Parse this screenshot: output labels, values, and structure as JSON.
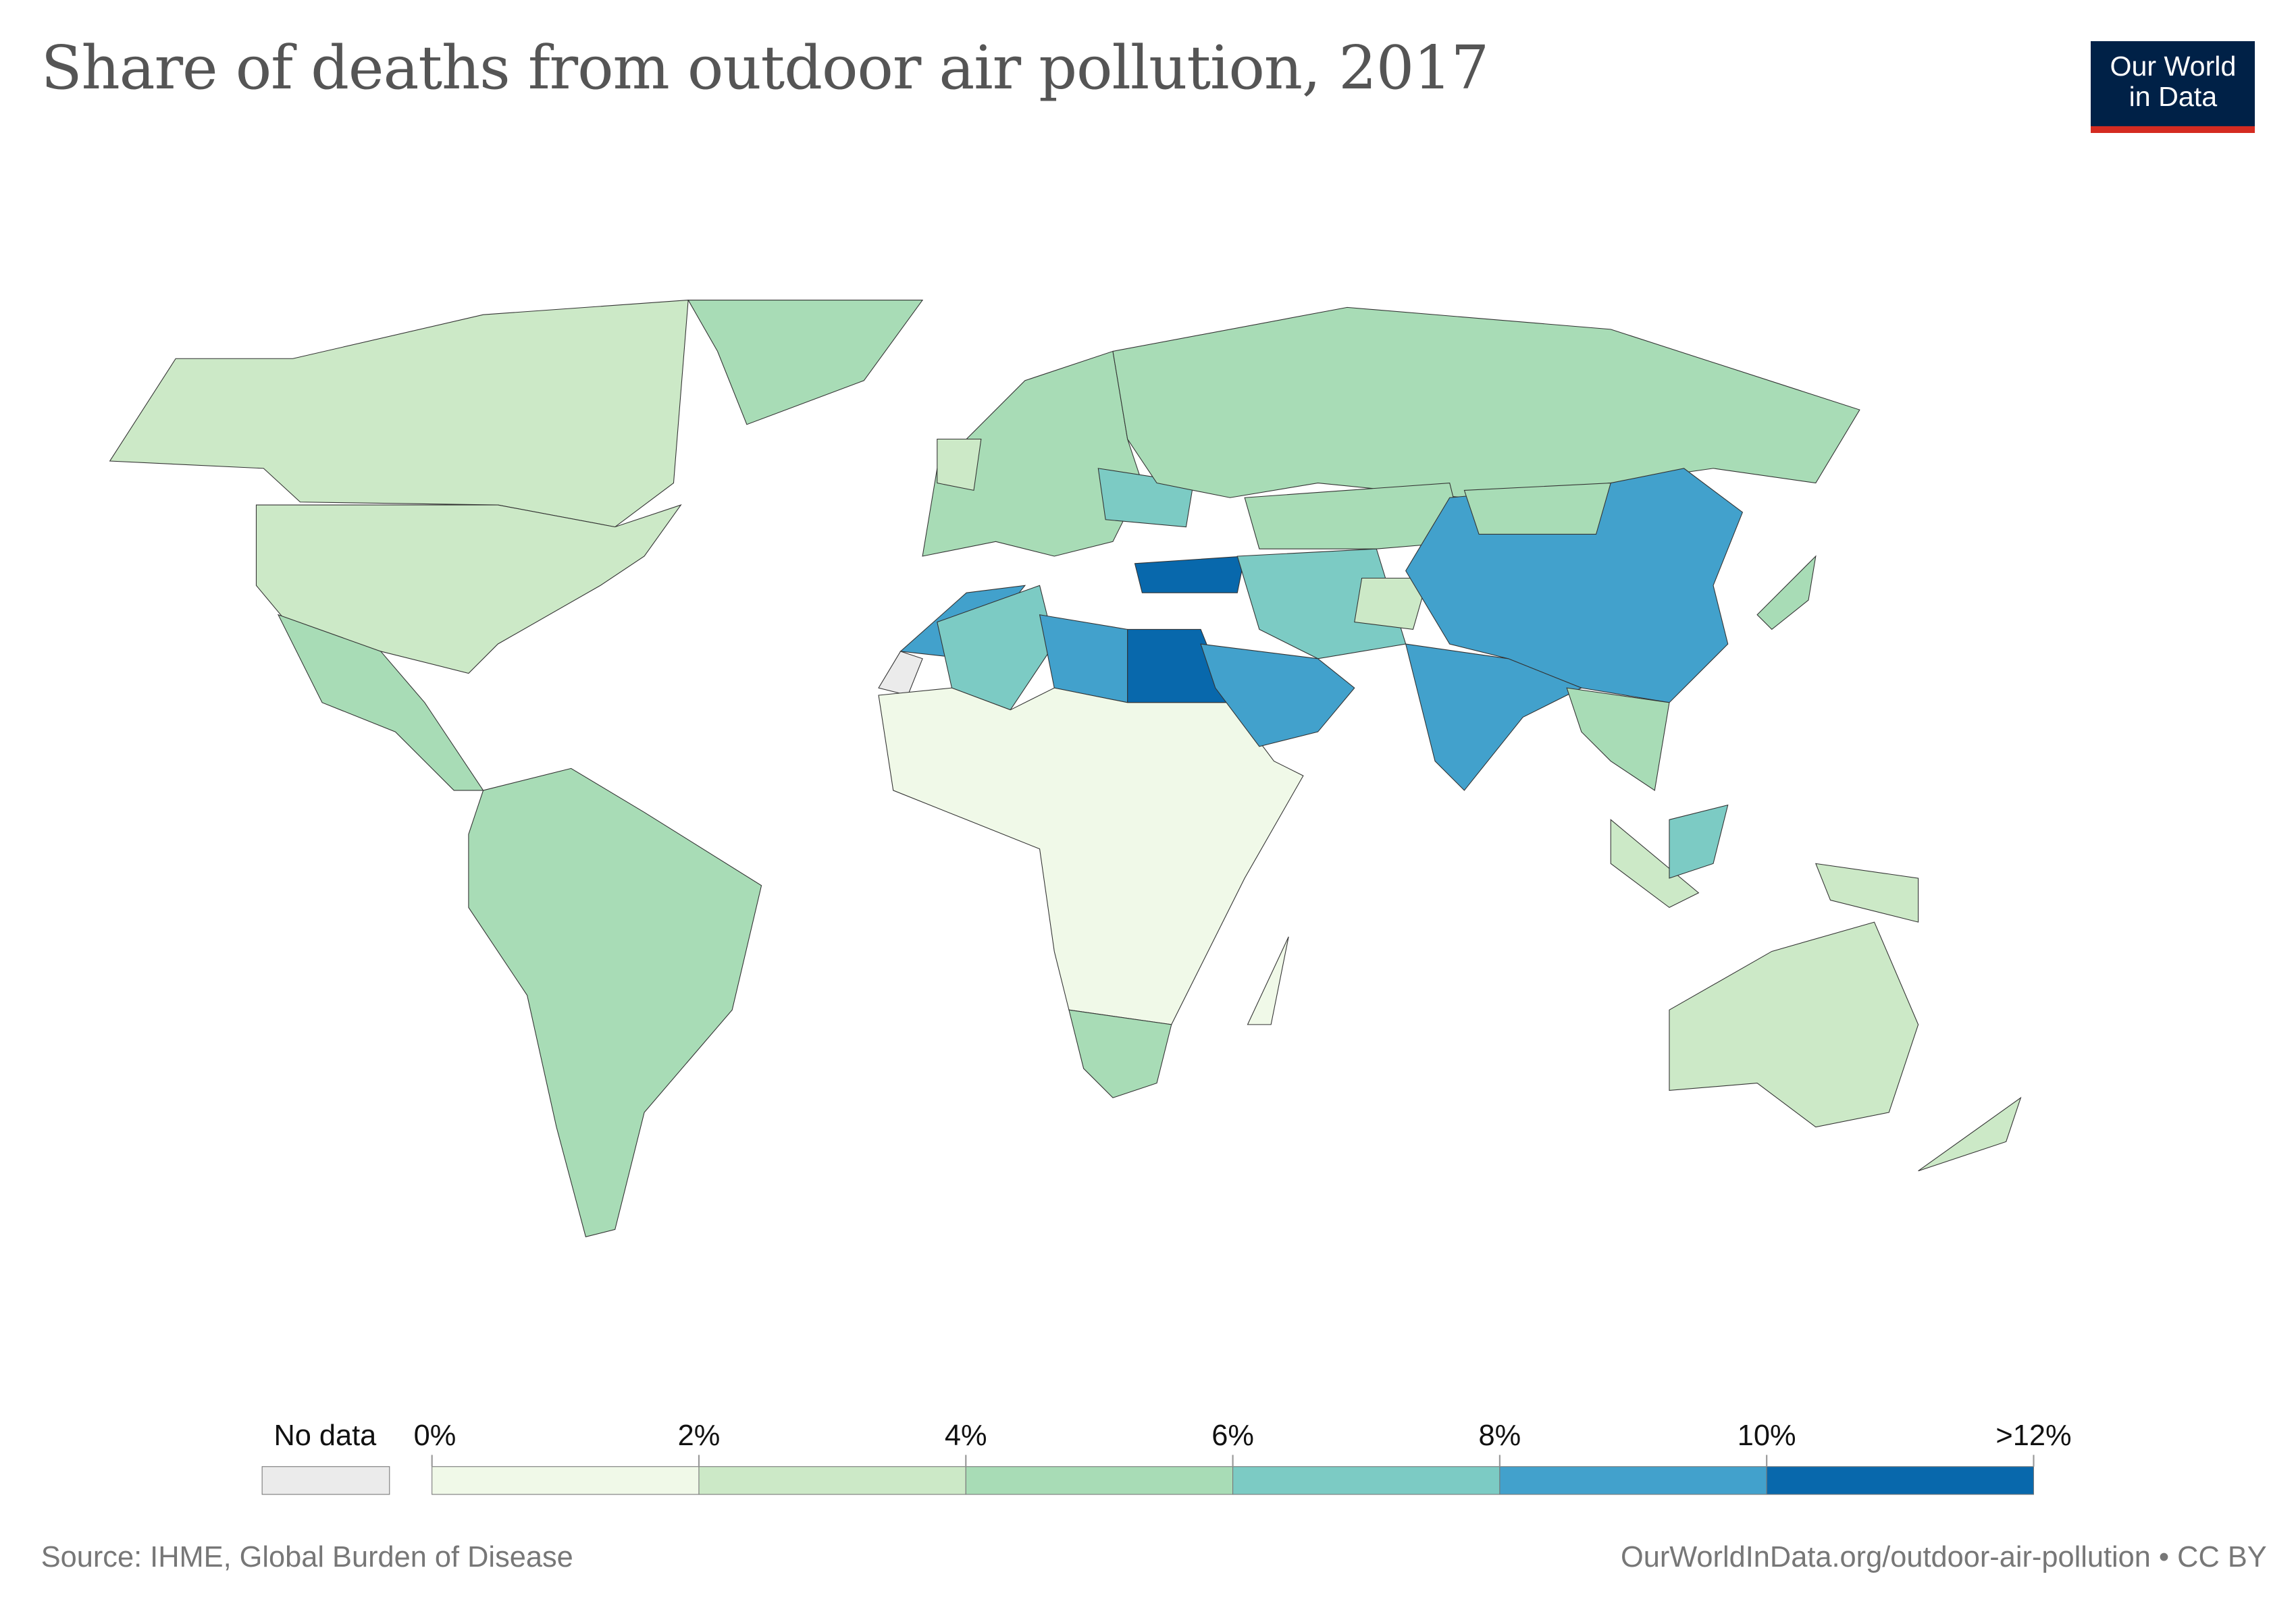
{
  "title": "Share of deaths from outdoor air pollution, 2017",
  "logo": {
    "line1": "Our World",
    "line2": "in Data",
    "bg": "#002147",
    "accent": "#d42b21"
  },
  "legend": {
    "no_data_label": "No data",
    "no_data_color": "#ebebeb",
    "ticks": [
      "0%",
      "2%",
      "4%",
      "6%",
      "8%",
      "10%",
      ">12%"
    ],
    "bins": [
      {
        "min": 0,
        "max": 2,
        "color": "#f0f9e8"
      },
      {
        "min": 2,
        "max": 4,
        "color": "#cce9c7"
      },
      {
        "min": 4,
        "max": 6,
        "color": "#a8dcb6"
      },
      {
        "min": 6,
        "max": 8,
        "color": "#7ccbc4"
      },
      {
        "min": 8,
        "max": 10,
        "color": "#42a1cc"
      },
      {
        "min": 10,
        "max": 12,
        "color": "#0868ac"
      }
    ]
  },
  "map_fill_bins": {
    "canada": 1,
    "usa": 1,
    "greenland": 2,
    "mexico-central-america": 2,
    "south-america": 2,
    "morocco": 4,
    "algeria": 3,
    "libya": 4,
    "egypt": 5,
    "sub-saharan-africa": 0,
    "southern-africa": 2,
    "madagascar": 0,
    "europe": 2,
    "uk": 1,
    "ukraine": 3,
    "russia": 2,
    "turkey": 5,
    "iran-iraq": 3,
    "arabia": 4,
    "central-asia": 2,
    "afghanistan": 1,
    "china": 4,
    "mongolia": 2,
    "india": 4,
    "southeast-asia": 2,
    "sumatra-java": 1,
    "borneo": 3,
    "new-guinea": 1,
    "japan": 2,
    "australia": 1,
    "new-zealand": 1,
    "western-sahara": -1
  },
  "footer": {
    "source": "Source: IHME, Global Burden of Disease",
    "url": "OurWorldInData.org/outdoor-air-pollution",
    "license": " • CC BY"
  }
}
